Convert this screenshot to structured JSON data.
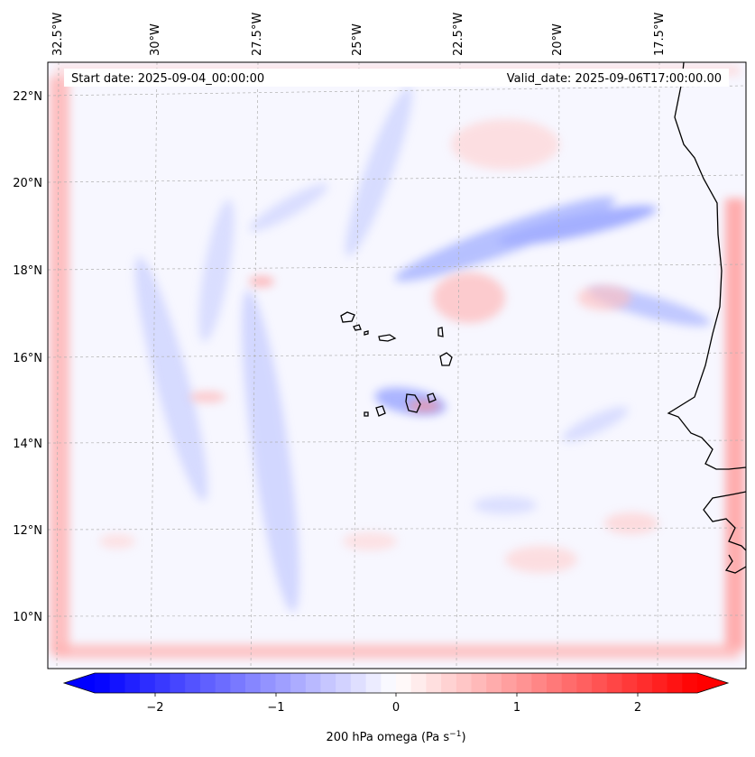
{
  "map": {
    "start_date_label": "Start date: 2025-09-04_00:00:00",
    "valid_date_label": "Valid_date: 2025-09-06T17:00:00.00",
    "lon_ticks": [
      "32.5°W",
      "30°W",
      "27.5°W",
      "25°W",
      "22.5°W",
      "20°W",
      "17.5°W"
    ],
    "lat_ticks": [
      "22°N",
      "20°N",
      "18°N",
      "16°N",
      "14°N",
      "12°N",
      "10°N"
    ]
  },
  "colorbar": {
    "ticks": [
      "−2",
      "−1",
      "0",
      "1",
      "2"
    ],
    "label_prefix": "200 hPa omega (Pa s",
    "label_exp": "−1",
    "label_suffix": ")",
    "vmin": -2.5,
    "vmax": 2.5,
    "min_color": "#0000ff",
    "mid_color": "#ffffff",
    "max_color": "#ff0000"
  },
  "colors": {
    "frame": "#000000",
    "grid": "#b0b0b0",
    "coast": "#000000"
  }
}
